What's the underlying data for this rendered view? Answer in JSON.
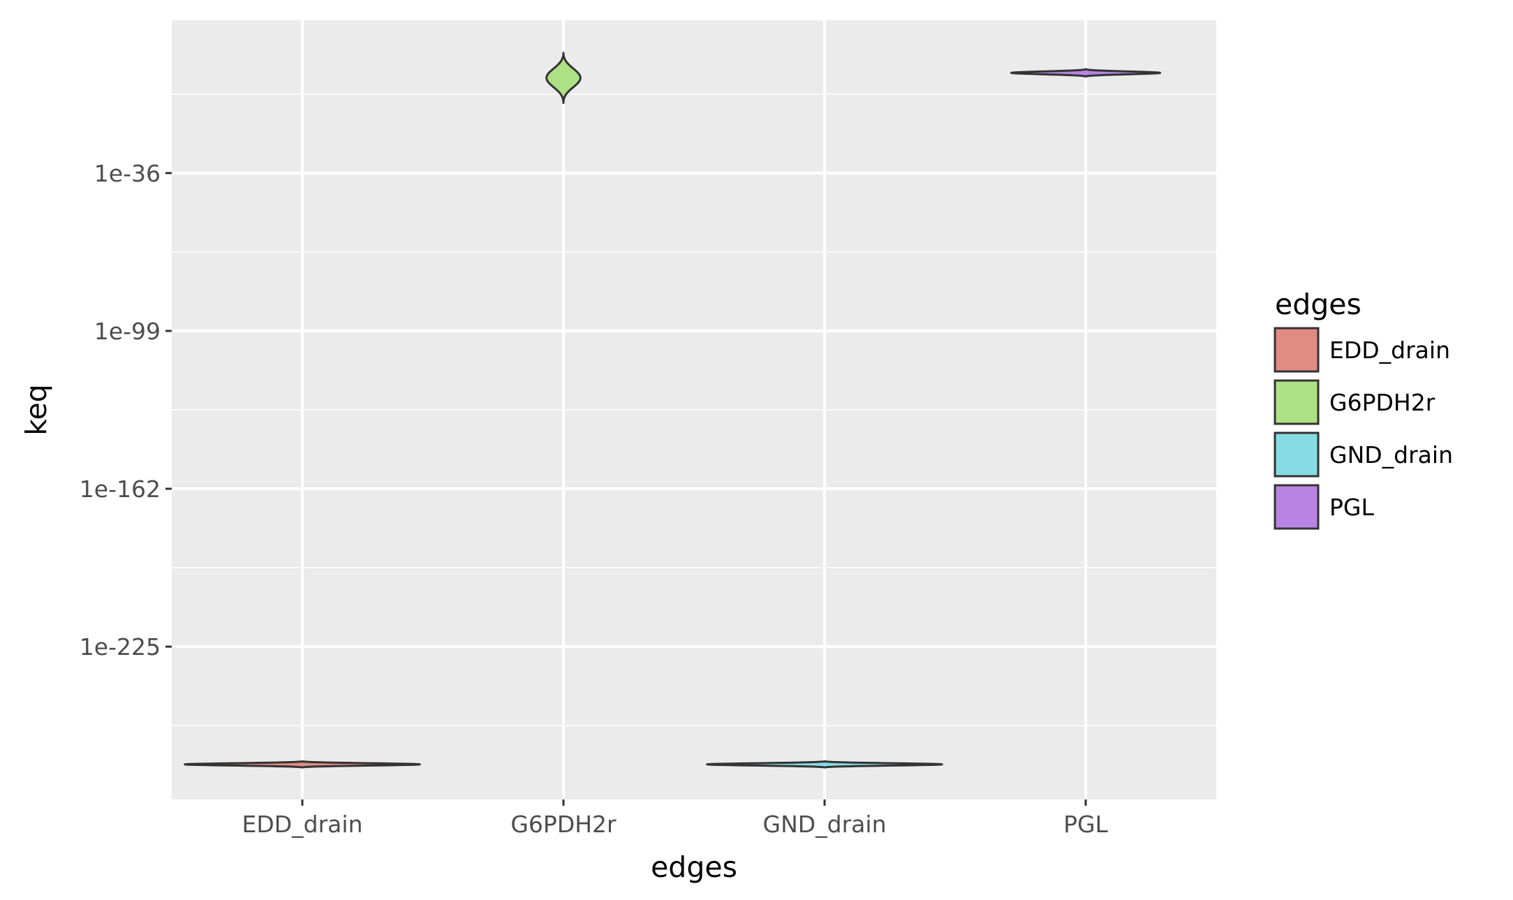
{
  "chart_data": {
    "type": "violin",
    "xlabel": "edges",
    "ylabel": "keq",
    "y_scale": "log10",
    "categories": [
      "EDD_drain",
      "G6PDH2r",
      "GND_drain",
      "PGL"
    ],
    "y_ticks": [
      {
        "exp": -36,
        "label": "1e-36"
      },
      {
        "exp": -99,
        "label": "1e-99"
      },
      {
        "exp": -162,
        "label": "1e-162"
      },
      {
        "exp": -225,
        "label": "1e-225"
      }
    ],
    "ylim_log10": [
      -286,
      25
    ],
    "grid": true,
    "legend": {
      "title": "edges",
      "placement": "right",
      "entries": [
        {
          "label": "EDD_drain",
          "color": "#e08b84"
        },
        {
          "label": "G6PDH2r",
          "color": "#aee184"
        },
        {
          "label": "GND_drain",
          "color": "#86dce2"
        },
        {
          "label": "PGL",
          "color": "#b884e3"
        }
      ]
    },
    "series": [
      {
        "category": "EDD_drain",
        "log10_center": -272,
        "log10_span": 2.5,
        "relative_width": 0.9
      },
      {
        "category": "G6PDH2r",
        "log10_center": 2,
        "log10_span": 20,
        "relative_width": 0.13
      },
      {
        "category": "GND_drain",
        "log10_center": -272,
        "log10_span": 2.5,
        "relative_width": 0.9
      },
      {
        "category": "PGL",
        "log10_center": 4,
        "log10_span": 3,
        "relative_width": 0.57
      }
    ],
    "colors": {
      "panel_background": "#ebebeb",
      "grid": "#ffffff",
      "outline": "#333333"
    }
  }
}
